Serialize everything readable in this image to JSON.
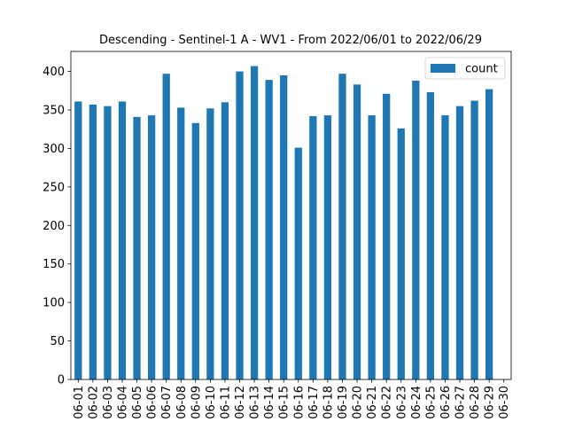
{
  "chart_data": {
    "type": "bar",
    "title": "Descending - Sentinel-1 A - WV1 - From 2022/06/01 to 2022/06/29",
    "xlabel": "",
    "ylabel": "",
    "categories": [
      "06-01",
      "06-02",
      "06-03",
      "06-04",
      "06-05",
      "06-06",
      "06-07",
      "06-08",
      "06-09",
      "06-10",
      "06-11",
      "06-12",
      "06-13",
      "06-14",
      "06-15",
      "06-16",
      "06-17",
      "06-18",
      "06-19",
      "06-20",
      "06-21",
      "06-22",
      "06-23",
      "06-24",
      "06-25",
      "06-26",
      "06-27",
      "06-28",
      "06-29",
      "06-30"
    ],
    "series": [
      {
        "name": "count",
        "color": "#1f77b4",
        "values": [
          361,
          357,
          355,
          361,
          341,
          343,
          397,
          353,
          333,
          352,
          360,
          400,
          407,
          389,
          395,
          301,
          342,
          343,
          397,
          383,
          343,
          371,
          326,
          388,
          373,
          343,
          355,
          362,
          377,
          0
        ]
      }
    ],
    "ylim": [
      0,
      426
    ],
    "yticks": [
      0,
      50,
      100,
      150,
      200,
      250,
      300,
      350,
      400
    ],
    "legend": {
      "placement": "top-right",
      "entries": [
        "count"
      ]
    },
    "grid": false
  }
}
